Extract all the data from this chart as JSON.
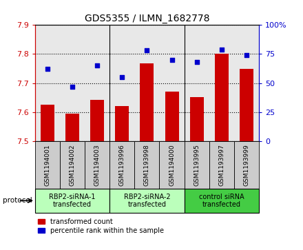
{
  "title": "GDS5355 / ILMN_1682778",
  "categories": [
    "GSM1194001",
    "GSM1194002",
    "GSM1194003",
    "GSM1193996",
    "GSM1193998",
    "GSM1194000",
    "GSM1193995",
    "GSM1193997",
    "GSM1193999"
  ],
  "bar_values": [
    7.627,
    7.595,
    7.643,
    7.622,
    7.768,
    7.672,
    7.651,
    7.8,
    7.75
  ],
  "dot_values": [
    62,
    47,
    65,
    55,
    78,
    70,
    68,
    79,
    74
  ],
  "bar_color": "#cc0000",
  "dot_color": "#0000cc",
  "ylim_left": [
    7.5,
    7.9
  ],
  "ylim_right": [
    0,
    100
  ],
  "yticks_left": [
    7.5,
    7.6,
    7.7,
    7.8,
    7.9
  ],
  "yticks_right": [
    0,
    25,
    50,
    75,
    100
  ],
  "groups": [
    {
      "label": "RBP2-siRNA-1\ntransfected",
      "start": 0,
      "end": 3,
      "color": "#bbffbb"
    },
    {
      "label": "RBP2-siRNA-2\ntransfected",
      "start": 3,
      "end": 6,
      "color": "#bbffbb"
    },
    {
      "label": "control siRNA\ntransfected",
      "start": 6,
      "end": 9,
      "color": "#44cc44"
    }
  ],
  "legend_bar_label": "transformed count",
  "legend_dot_label": "percentile rank within the sample",
  "protocol_label": "protocol",
  "bar_base": 7.5,
  "bg_color": "#e8e8e8",
  "sample_box_color": "#cccccc",
  "tick_label_color_left": "#cc0000",
  "tick_label_color_right": "#0000cc",
  "group_boundary_cols": [
    2.5,
    5.5
  ],
  "fig_width": 4.4,
  "fig_height": 3.63
}
